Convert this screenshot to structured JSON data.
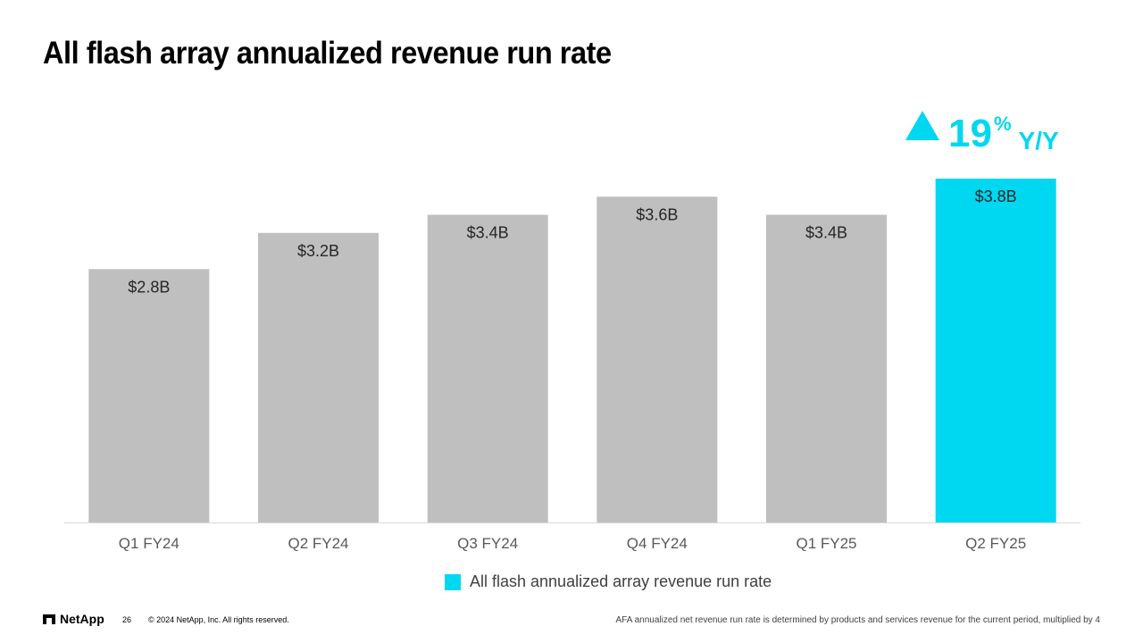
{
  "slide": {
    "title": "All flash array annualized revenue run rate"
  },
  "yoy": {
    "value": "19",
    "percent_sign": "%",
    "label": "Y/Y",
    "color": "#00d7f0"
  },
  "chart_data": {
    "type": "bar",
    "title": "All flash array annualized revenue run rate",
    "categories": [
      "Q1 FY24",
      "Q2 FY24",
      "Q3 FY24",
      "Q4 FY24",
      "Q1 FY25",
      "Q2 FY25"
    ],
    "values": [
      2.8,
      3.2,
      3.4,
      3.6,
      3.4,
      3.8
    ],
    "data_labels": [
      "$2.8B",
      "$3.2B",
      "$3.4B",
      "$3.6B",
      "$3.4B",
      "$3.8B"
    ],
    "unit": "$B",
    "ylim": [
      0,
      3.8
    ],
    "xlabel": "",
    "ylabel": "",
    "grid": false,
    "bar_colors": [
      "#bfbfbf",
      "#bfbfbf",
      "#bfbfbf",
      "#bfbfbf",
      "#bfbfbf",
      "#00d7f0"
    ],
    "legend": {
      "position": "bottom",
      "entries": [
        "All flash annualized array revenue run rate"
      ]
    }
  },
  "legend": {
    "label": "All flash annualized array revenue run rate",
    "color": "#00d7f0"
  },
  "footer": {
    "logo_text": "NetApp",
    "page_number": "26",
    "copyright": "© 2024 NetApp, Inc. All rights reserved.",
    "footnote": "AFA annualized net revenue run rate is determined by products and services revenue for the current period, multiplied by 4"
  }
}
